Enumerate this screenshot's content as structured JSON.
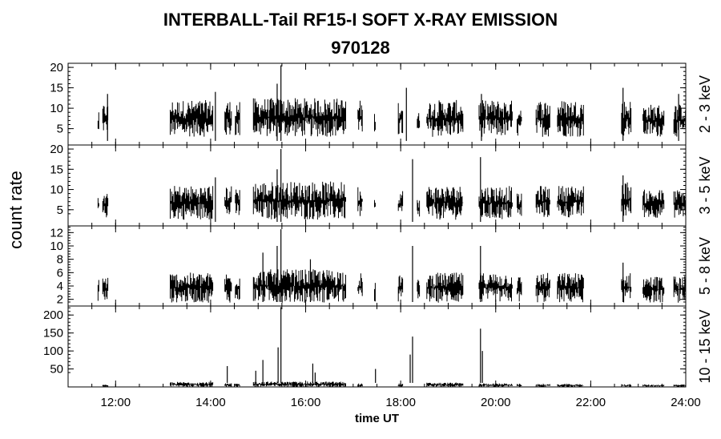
{
  "chart_data": {
    "type": "line",
    "title": "INTERBALL-Tail RF15-I SOFT X-RAY EMISSION",
    "subtitle": "970128",
    "ylabel": "count rate",
    "xlabel": "time UT",
    "x_unit": "hours UT",
    "xlim": [
      11.0,
      24.0
    ],
    "xticks": [
      12,
      14,
      16,
      18,
      20,
      22,
      24
    ],
    "xtick_labels": [
      "12:00",
      "14:00",
      "16:00",
      "18:00",
      "20:00",
      "22:00",
      "24:00"
    ],
    "grid": false,
    "panels": [
      {
        "name": "2 - 3 keV",
        "ylim": [
          1,
          21
        ],
        "yticks": [
          5,
          10,
          15,
          20
        ],
        "segments": [
          {
            "x": [
              11.63,
              11.65
            ],
            "y": [
              3.0,
              9.0
            ]
          },
          {
            "x": [
              11.73,
              11.85
            ],
            "y": [
              4.0,
              11.0
            ]
          },
          {
            "x": [
              13.15,
              14.05
            ],
            "y": [
              3.0,
              12.0
            ]
          },
          {
            "x": [
              14.3,
              14.45
            ],
            "y": [
              3.0,
              12.0
            ]
          },
          {
            "x": [
              14.52,
              14.62
            ],
            "y": [
              3.0,
              12.0
            ]
          },
          {
            "x": [
              14.9,
              16.85
            ],
            "y": [
              3.0,
              12.5
            ]
          },
          {
            "x": [
              17.1,
              17.2
            ],
            "y": [
              3.0,
              12.0
            ]
          },
          {
            "x": [
              17.45,
              17.48
            ],
            "y": [
              4.0,
              9.0
            ]
          },
          {
            "x": [
              17.95,
              18.05
            ],
            "y": [
              3.0,
              12.0
            ]
          },
          {
            "x": [
              18.35,
              18.4
            ],
            "y": [
              3.0,
              9.0
            ]
          },
          {
            "x": [
              18.55,
              19.32
            ],
            "y": [
              3.0,
              12.0
            ]
          },
          {
            "x": [
              19.65,
              20.35
            ],
            "y": [
              3.0,
              12.0
            ]
          },
          {
            "x": [
              20.45,
              20.55
            ],
            "y": [
              3.0,
              11.0
            ]
          },
          {
            "x": [
              20.85,
              21.15
            ],
            "y": [
              3.0,
              12.0
            ]
          },
          {
            "x": [
              21.3,
              21.85
            ],
            "y": [
              3.0,
              12.0
            ]
          },
          {
            "x": [
              22.65,
              22.85
            ],
            "y": [
              3.0,
              12.0
            ]
          },
          {
            "x": [
              23.1,
              23.55
            ],
            "y": [
              3.0,
              11.0
            ]
          },
          {
            "x": [
              23.75,
              24.0
            ],
            "y": [
              3.0,
              11.0
            ]
          }
        ],
        "peaks": [
          {
            "x": 15.48,
            "y": 20.5
          },
          {
            "x": 15.4,
            "y": 16.0
          },
          {
            "x": 14.1,
            "y": 14.0
          },
          {
            "x": 11.83,
            "y": 13.5
          },
          {
            "x": 18.12,
            "y": 15.0
          },
          {
            "x": 19.7,
            "y": 13.5
          },
          {
            "x": 22.68,
            "y": 15.0
          },
          {
            "x": 23.85,
            "y": 13.5
          }
        ]
      },
      {
        "name": "3 - 5 keV",
        "ylim": [
          1,
          21
        ],
        "yticks": [
          5,
          10,
          15,
          20
        ],
        "segments": [
          {
            "x": [
              11.63,
              11.65
            ],
            "y": [
              4.0,
              8.0
            ]
          },
          {
            "x": [
              11.73,
              11.85
            ],
            "y": [
              3.0,
              9.0
            ]
          },
          {
            "x": [
              13.15,
              14.05
            ],
            "y": [
              2.5,
              11.0
            ]
          },
          {
            "x": [
              14.3,
              14.45
            ],
            "y": [
              3.0,
              11.0
            ]
          },
          {
            "x": [
              14.52,
              14.62
            ],
            "y": [
              3.0,
              11.0
            ]
          },
          {
            "x": [
              14.9,
              16.85
            ],
            "y": [
              2.5,
              12.0
            ]
          },
          {
            "x": [
              17.1,
              17.2
            ],
            "y": [
              3.0,
              11.0
            ]
          },
          {
            "x": [
              17.45,
              17.48
            ],
            "y": [
              4.0,
              8.0
            ]
          },
          {
            "x": [
              17.95,
              18.05
            ],
            "y": [
              3.0,
              10.0
            ]
          },
          {
            "x": [
              18.35,
              18.4
            ],
            "y": [
              3.0,
              8.0
            ]
          },
          {
            "x": [
              18.55,
              19.32
            ],
            "y": [
              2.5,
              11.0
            ]
          },
          {
            "x": [
              19.65,
              20.35
            ],
            "y": [
              2.5,
              11.0
            ]
          },
          {
            "x": [
              20.45,
              20.55
            ],
            "y": [
              3.0,
              9.0
            ]
          },
          {
            "x": [
              20.85,
              21.15
            ],
            "y": [
              3.0,
              11.0
            ]
          },
          {
            "x": [
              21.3,
              21.85
            ],
            "y": [
              3.0,
              11.0
            ]
          },
          {
            "x": [
              22.65,
              22.85
            ],
            "y": [
              3.0,
              12.0
            ]
          },
          {
            "x": [
              23.1,
              23.55
            ],
            "y": [
              3.0,
              10.0
            ]
          },
          {
            "x": [
              23.75,
              24.0
            ],
            "y": [
              3.0,
              10.0
            ]
          }
        ],
        "peaks": [
          {
            "x": 15.48,
            "y": 20.0
          },
          {
            "x": 15.4,
            "y": 15.0
          },
          {
            "x": 18.25,
            "y": 17.5
          },
          {
            "x": 19.68,
            "y": 18.0
          },
          {
            "x": 14.1,
            "y": 13.0
          },
          {
            "x": 22.68,
            "y": 13.5
          }
        ]
      },
      {
        "name": "5 - 8 keV",
        "ylim": [
          1,
          13
        ],
        "yticks": [
          2,
          4,
          6,
          8,
          10,
          12
        ],
        "segments": [
          {
            "x": [
              11.63,
              11.65
            ],
            "y": [
              1.5,
              5.5
            ]
          },
          {
            "x": [
              11.73,
              11.85
            ],
            "y": [
              1.5,
              5.5
            ]
          },
          {
            "x": [
              13.15,
              14.05
            ],
            "y": [
              1.5,
              6.0
            ]
          },
          {
            "x": [
              14.3,
              14.45
            ],
            "y": [
              1.5,
              6.0
            ]
          },
          {
            "x": [
              14.52,
              14.62
            ],
            "y": [
              1.5,
              6.0
            ]
          },
          {
            "x": [
              14.9,
              16.85
            ],
            "y": [
              1.5,
              6.5
            ]
          },
          {
            "x": [
              17.1,
              17.2
            ],
            "y": [
              1.5,
              6.0
            ]
          },
          {
            "x": [
              17.45,
              17.48
            ],
            "y": [
              1.5,
              4.5
            ]
          },
          {
            "x": [
              17.95,
              18.05
            ],
            "y": [
              1.5,
              6.0
            ]
          },
          {
            "x": [
              18.35,
              18.4
            ],
            "y": [
              1.5,
              5.0
            ]
          },
          {
            "x": [
              18.55,
              19.32
            ],
            "y": [
              1.5,
              6.0
            ]
          },
          {
            "x": [
              19.65,
              20.35
            ],
            "y": [
              1.5,
              6.0
            ]
          },
          {
            "x": [
              20.45,
              20.55
            ],
            "y": [
              1.5,
              5.5
            ]
          },
          {
            "x": [
              20.85,
              21.15
            ],
            "y": [
              1.5,
              6.0
            ]
          },
          {
            "x": [
              21.3,
              21.85
            ],
            "y": [
              1.5,
              6.0
            ]
          },
          {
            "x": [
              22.65,
              22.85
            ],
            "y": [
              1.5,
              6.0
            ]
          },
          {
            "x": [
              23.1,
              23.55
            ],
            "y": [
              1.5,
              5.5
            ]
          },
          {
            "x": [
              23.75,
              24.0
            ],
            "y": [
              1.5,
              5.5
            ]
          }
        ],
        "peaks": [
          {
            "x": 15.48,
            "y": 12.5
          },
          {
            "x": 15.4,
            "y": 10.0
          },
          {
            "x": 15.1,
            "y": 9.0
          },
          {
            "x": 18.25,
            "y": 10.0
          },
          {
            "x": 19.68,
            "y": 10.0
          },
          {
            "x": 16.1,
            "y": 8.0
          },
          {
            "x": 22.68,
            "y": 7.5
          }
        ]
      },
      {
        "name": "10 - 15 keV",
        "ylim": [
          0,
          225
        ],
        "yticks": [
          50,
          100,
          150,
          200
        ],
        "segments": [
          {
            "x": [
              11.73,
              11.85
            ],
            "y": [
              0,
              6
            ]
          },
          {
            "x": [
              13.15,
              14.05
            ],
            "y": [
              0,
              14
            ]
          },
          {
            "x": [
              14.3,
              14.45
            ],
            "y": [
              0,
              10
            ]
          },
          {
            "x": [
              14.52,
              14.62
            ],
            "y": [
              0,
              10
            ]
          },
          {
            "x": [
              14.9,
              16.85
            ],
            "y": [
              0,
              15
            ]
          },
          {
            "x": [
              17.1,
              17.2
            ],
            "y": [
              0,
              10
            ]
          },
          {
            "x": [
              17.95,
              18.05
            ],
            "y": [
              0,
              10
            ]
          },
          {
            "x": [
              18.55,
              19.32
            ],
            "y": [
              0,
              12
            ]
          },
          {
            "x": [
              19.65,
              20.35
            ],
            "y": [
              0,
              10
            ]
          },
          {
            "x": [
              20.45,
              20.55
            ],
            "y": [
              0,
              8
            ]
          },
          {
            "x": [
              20.85,
              21.15
            ],
            "y": [
              0,
              8
            ]
          },
          {
            "x": [
              21.3,
              21.85
            ],
            "y": [
              0,
              8
            ]
          },
          {
            "x": [
              22.65,
              22.85
            ],
            "y": [
              0,
              8
            ]
          },
          {
            "x": [
              23.1,
              23.55
            ],
            "y": [
              0,
              7
            ]
          },
          {
            "x": [
              23.75,
              24.0
            ],
            "y": [
              0,
              7
            ]
          }
        ],
        "peaks": [
          {
            "x": 15.48,
            "y": 222
          },
          {
            "x": 15.42,
            "y": 110
          },
          {
            "x": 15.1,
            "y": 75
          },
          {
            "x": 14.95,
            "y": 45
          },
          {
            "x": 14.35,
            "y": 58
          },
          {
            "x": 16.15,
            "y": 65
          },
          {
            "x": 16.2,
            "y": 40
          },
          {
            "x": 17.47,
            "y": 50
          },
          {
            "x": 18.25,
            "y": 140
          },
          {
            "x": 18.2,
            "y": 90
          },
          {
            "x": 19.68,
            "y": 162
          },
          {
            "x": 19.72,
            "y": 100
          }
        ]
      }
    ]
  }
}
